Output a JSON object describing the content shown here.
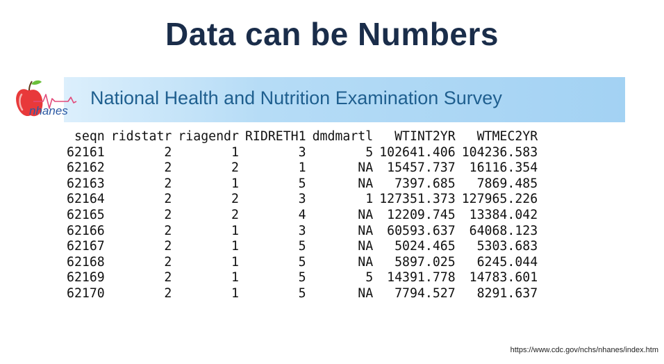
{
  "slide": {
    "title": "Data can be Numbers",
    "source_url": "https://www.cdc.gov/nchs/nhanes/index.htm"
  },
  "banner": {
    "title": "National Health and Nutrition Examination Survey",
    "logo_text": "nhanes",
    "logo_icon": "apple-heartbeat-logo-icon"
  },
  "table": {
    "columns": [
      "seqn",
      "ridstatr",
      "riagendr",
      "RIDRETH1",
      "dmdmartl",
      "WTINT2YR",
      "WTMEC2YR"
    ],
    "rows": [
      [
        "62161",
        "2",
        "1",
        "3",
        "5",
        "102641.406",
        "104236.583"
      ],
      [
        "62162",
        "2",
        "2",
        "1",
        "NA",
        "15457.737",
        "16116.354"
      ],
      [
        "62163",
        "2",
        "1",
        "5",
        "NA",
        "7397.685",
        "7869.485"
      ],
      [
        "62164",
        "2",
        "2",
        "3",
        "1",
        "127351.373",
        "127965.226"
      ],
      [
        "62165",
        "2",
        "2",
        "4",
        "NA",
        "12209.745",
        "13384.042"
      ],
      [
        "62166",
        "2",
        "1",
        "3",
        "NA",
        "60593.637",
        "64068.123"
      ],
      [
        "62167",
        "2",
        "1",
        "5",
        "NA",
        "5024.465",
        "5303.683"
      ],
      [
        "62168",
        "2",
        "1",
        "5",
        "NA",
        "5897.025",
        "6245.044"
      ],
      [
        "62169",
        "2",
        "1",
        "5",
        "5",
        "14391.778",
        "14783.601"
      ],
      [
        "62170",
        "2",
        "1",
        "5",
        "NA",
        "7794.527",
        "8291.637"
      ]
    ]
  },
  "colors": {
    "title": "#1a2d4a",
    "banner": "#a9d6f5",
    "banner_text": "#1f5f8f",
    "logo_apple": "#e8393a",
    "logo_text": "#2b59a3"
  }
}
